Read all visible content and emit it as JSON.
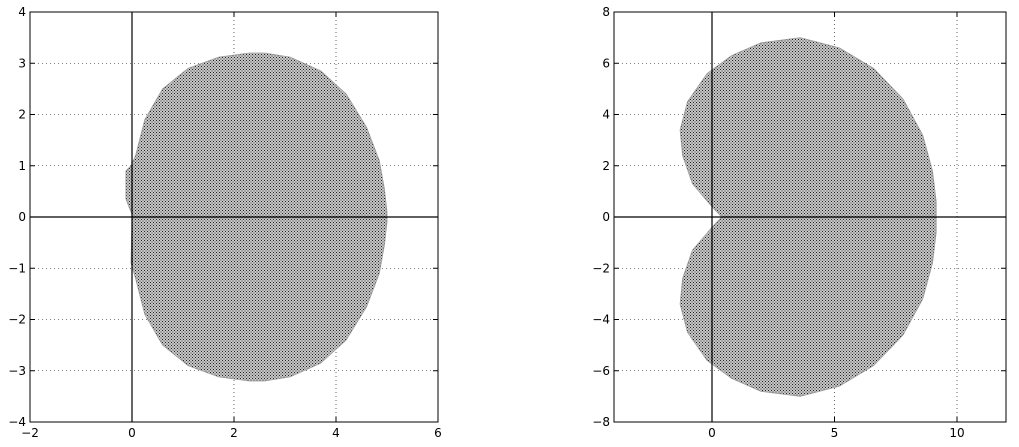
{
  "chart_data": [
    {
      "type": "scatter",
      "description_shape": "filled region (dense point cloud)",
      "xlim": [
        -2,
        6
      ],
      "ylim": [
        -4,
        4
      ],
      "xticks": [
        -2,
        0,
        2,
        4,
        6
      ],
      "yticks": [
        -4,
        -3,
        -2,
        -1,
        0,
        1,
        2,
        3,
        4
      ],
      "xtick_labels": [
        "−2",
        "0",
        "2",
        "4",
        "6"
      ],
      "ytick_labels": [
        "−4",
        "−3",
        "−2",
        "−1",
        "0",
        "1",
        "2",
        "3",
        "4"
      ],
      "grid": true,
      "grid_style": "dotted",
      "axes_lines_through_origin": true,
      "region_color": "#555555",
      "region_outline": {
        "x": [
          0.07,
          0.25,
          0.6,
          1.1,
          1.7,
          2.3,
          2.6,
          3.1,
          3.7,
          4.2,
          4.6,
          4.85,
          4.95,
          5.0,
          5.0,
          4.95,
          4.85,
          4.6,
          4.2,
          3.7,
          3.1,
          2.6,
          2.3,
          1.7,
          1.1,
          0.6,
          0.25,
          0.07,
          -0.02,
          0.0,
          0.0,
          -0.12,
          -0.12,
          -0.02
        ],
        "y": [
          1.2,
          1.9,
          2.5,
          2.9,
          3.12,
          3.2,
          3.2,
          3.12,
          2.85,
          2.4,
          1.75,
          1.1,
          0.55,
          0.1,
          -0.1,
          -0.55,
          -1.1,
          -1.75,
          -2.4,
          -2.85,
          -3.12,
          -3.2,
          -3.2,
          -3.12,
          -2.9,
          -2.5,
          -1.9,
          -1.2,
          -0.9,
          -0.05,
          0.05,
          0.35,
          0.9,
          1.0
        ]
      }
    },
    {
      "type": "scatter",
      "description_shape": "filled region (dense point cloud)",
      "xlim": [
        -4,
        12
      ],
      "ylim": [
        -8,
        8
      ],
      "xticks": [
        0,
        5,
        10
      ],
      "yticks": [
        -8,
        -6,
        -4,
        -2,
        0,
        2,
        4,
        6,
        8
      ],
      "xtick_labels": [
        "0",
        "5",
        "10"
      ],
      "ytick_labels": [
        "−8",
        "−6",
        "−4",
        "−2",
        "0",
        "2",
        "4",
        "6",
        "8"
      ],
      "grid": true,
      "grid_style": "dotted",
      "axes_lines_through_origin": true,
      "region_color": "#555555",
      "region_outline": {
        "x": [
          0.0,
          -0.8,
          -1.2,
          -1.3,
          -1.0,
          -0.2,
          0.8,
          2.0,
          3.6,
          5.2,
          6.6,
          7.8,
          8.6,
          9.0,
          9.15,
          9.15,
          9.0,
          8.6,
          7.8,
          6.6,
          5.2,
          3.6,
          2.0,
          0.8,
          -0.2,
          -1.0,
          -1.3,
          -1.2,
          -0.8,
          0.0,
          0.35,
          0.35
        ],
        "y": [
          0.4,
          1.3,
          2.4,
          3.4,
          4.5,
          5.6,
          6.3,
          6.8,
          7.0,
          6.6,
          5.8,
          4.6,
          3.2,
          1.8,
          0.6,
          -0.6,
          -1.8,
          -3.2,
          -4.6,
          -5.8,
          -6.6,
          -7.0,
          -6.8,
          -6.3,
          -5.6,
          -4.5,
          -3.4,
          -2.4,
          -1.3,
          -0.4,
          -0.05,
          0.05
        ]
      }
    }
  ]
}
